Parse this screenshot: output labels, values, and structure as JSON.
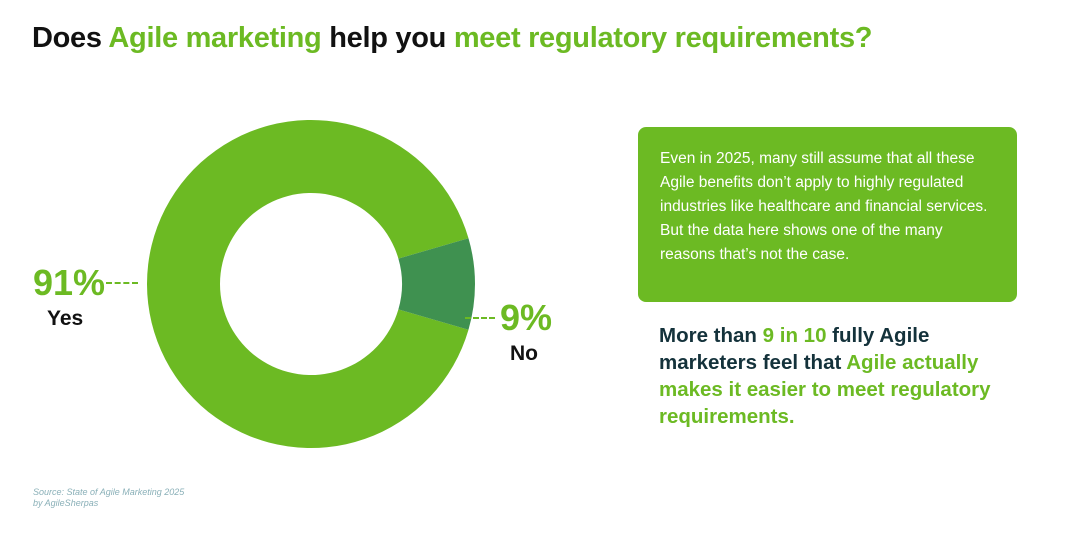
{
  "title": {
    "part1": "Does ",
    "part2": "Agile marketing",
    "part3": " help you ",
    "part4": "meet regulatory requirements?"
  },
  "colors": {
    "yes": "#6cba23",
    "no": "#3f9150",
    "accent": "#6cba23",
    "dark_text": "#14323b"
  },
  "chart_data": {
    "type": "pie",
    "subtype": "donut",
    "categories": [
      "Yes",
      "No"
    ],
    "values": [
      91,
      9
    ],
    "labels": [
      {
        "category": "Yes",
        "value_text": "91%"
      },
      {
        "category": "No",
        "value_text": "9%"
      }
    ]
  },
  "callout": {
    "text": "Even in 2025, many still assume that all these Agile benefits don’t apply to highly regulated industries like healthcare and financial services. But the data here shows one of the many reasons that’s not the case."
  },
  "stat": {
    "part1": "More than ",
    "part2": "9 in 10",
    "part3": " fully Agile marketers feel that ",
    "part4": "Agile actually makes it easier to meet regulatory requirements."
  },
  "source": {
    "line1": "Source: State of Agile Marketing 2025",
    "line2": "by AgileSherpas"
  }
}
